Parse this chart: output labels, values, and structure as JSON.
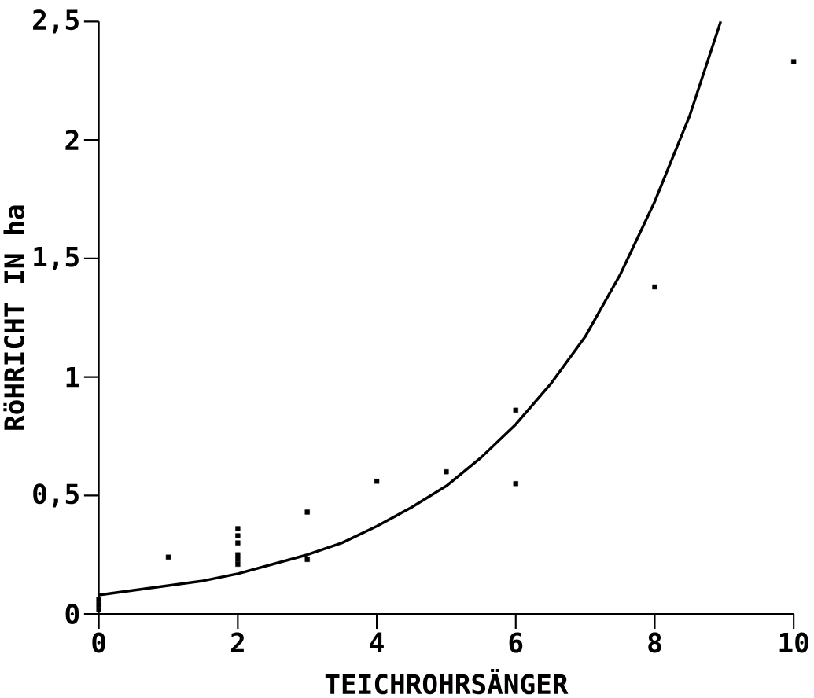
{
  "chart_data": {
    "type": "scatter",
    "xlabel": "TEICHROHRSÄNGER",
    "ylabel": "RöHRICHT IN ha",
    "xlim": [
      0,
      10
    ],
    "ylim": [
      0,
      2.5
    ],
    "xticks": [
      0,
      2,
      4,
      6,
      8,
      10
    ],
    "yticks": [
      0,
      {
        "value": 0.5,
        "label": "0,5"
      },
      1,
      {
        "value": 1.5,
        "label": "1,5"
      },
      2,
      {
        "value": 2.5,
        "label": "2,5"
      }
    ],
    "grid": false,
    "series": [
      {
        "color": "#000000",
        "marker": "square",
        "x": [
          0,
          0,
          0,
          1,
          2,
          2,
          2,
          2,
          2,
          2,
          3,
          3,
          4,
          5,
          6,
          6,
          8,
          10
        ],
        "values": [
          0.06,
          0.04,
          0.02,
          0.24,
          0.36,
          0.33,
          0.3,
          0.25,
          0.23,
          0.21,
          0.43,
          0.23,
          0.56,
          0.6,
          0.86,
          0.55,
          1.38,
          2.33
        ]
      },
      {
        "type": "line",
        "color": "#000000",
        "marker": "none",
        "line_style": "solid",
        "x": [
          0,
          0.5,
          1,
          1.5,
          2,
          2.5,
          3,
          3.5,
          4,
          4.5,
          5,
          5.5,
          6,
          6.5,
          7,
          7.5,
          8,
          8.5,
          8.95
        ],
        "values": [
          0.08,
          0.1,
          0.12,
          0.14,
          0.17,
          0.21,
          0.25,
          0.3,
          0.37,
          0.45,
          0.54,
          0.66,
          0.8,
          0.97,
          1.17,
          1.43,
          1.74,
          2.1,
          2.5
        ]
      }
    ]
  }
}
